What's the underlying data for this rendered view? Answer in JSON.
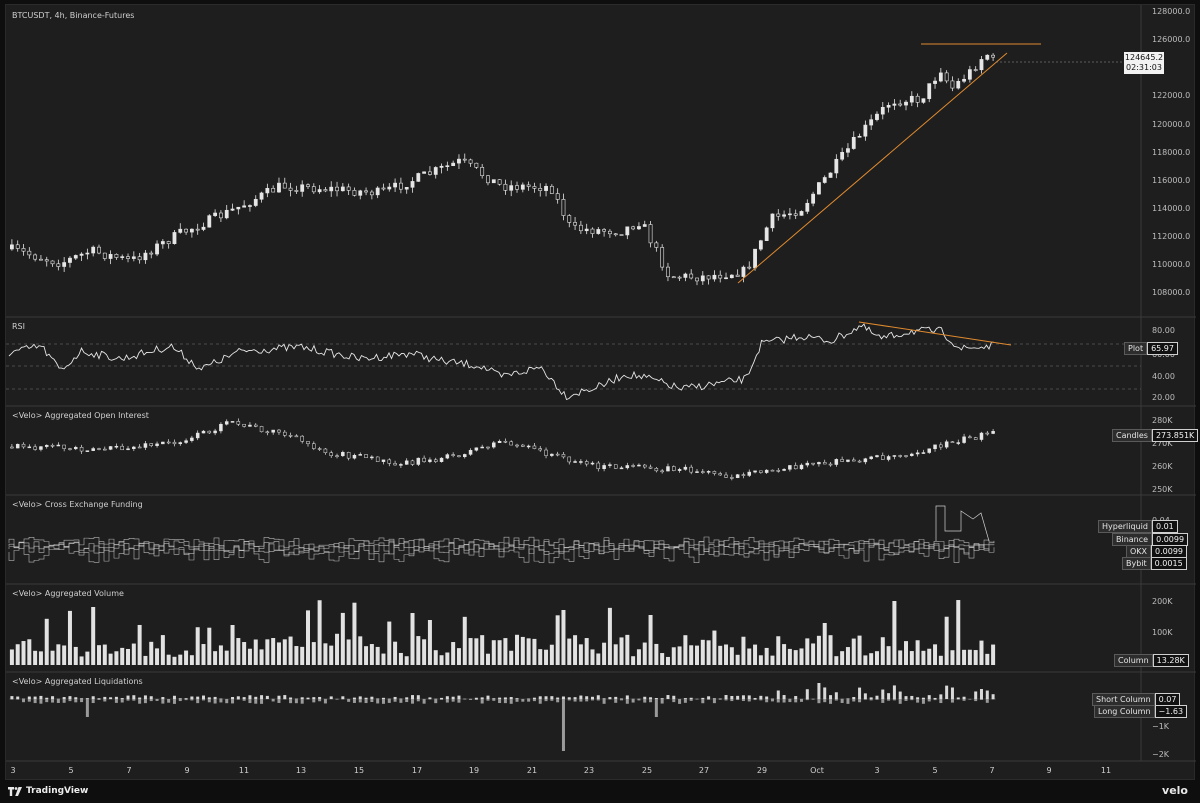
{
  "main": {
    "symbol_title": "BTCUSDT, 4h, Binance-Futures",
    "price_axis": [
      "128000.0",
      "126000.0",
      "124000.0",
      "122000.0",
      "120000.0",
      "118000.0",
      "116000.0",
      "114000.0",
      "112000.0",
      "110000.0",
      "108000.0"
    ],
    "last_price": "124645.2",
    "countdown": "02:31:03"
  },
  "rsi": {
    "title": "RSI",
    "axis": [
      "80.00",
      "40.00",
      "20.00"
    ],
    "tag_label": "Plot",
    "tag_value": "65.97",
    "partial_label": "60.00"
  },
  "open_interest": {
    "title": "<Velo> Aggregated Open Interest",
    "axis": [
      "280K",
      "270K",
      "260K",
      "250K"
    ],
    "tag_label": "Candles",
    "tag_value": "273.851K"
  },
  "funding": {
    "title": "<Velo> Cross Exchange Funding",
    "partial_axis": "0.04",
    "legend": [
      {
        "label": "Hyperliquid",
        "value": "0.01"
      },
      {
        "label": "Binance",
        "value": "0.0099"
      },
      {
        "label": "OKX",
        "value": "0.0099"
      },
      {
        "label": "Bybit",
        "value": "0.0015"
      }
    ]
  },
  "volume": {
    "title": "<Velo> Aggregated Volume",
    "axis": [
      "200K",
      "100K"
    ],
    "tag_label": "Column",
    "tag_value": "13.28K"
  },
  "liquidations": {
    "title": "<Velo> Aggregated Liquidations",
    "axis": [
      "−1K",
      "−2K"
    ],
    "legend": [
      {
        "label": "Short Column",
        "value": "0.07"
      },
      {
        "label": "Long Column",
        "value": "−1.63"
      }
    ]
  },
  "time_axis": [
    "3",
    "5",
    "7",
    "9",
    "11",
    "13",
    "15",
    "17",
    "19",
    "21",
    "23",
    "25",
    "27",
    "29",
    "Oct",
    "3",
    "5",
    "7",
    "9",
    "11"
  ],
  "footer": {
    "brand": "TradingView",
    "right_brand": "velo"
  },
  "colors": {
    "background": "#1e1e1e",
    "candle": "#e6e6e6",
    "trendline": "#e08a2e"
  }
}
